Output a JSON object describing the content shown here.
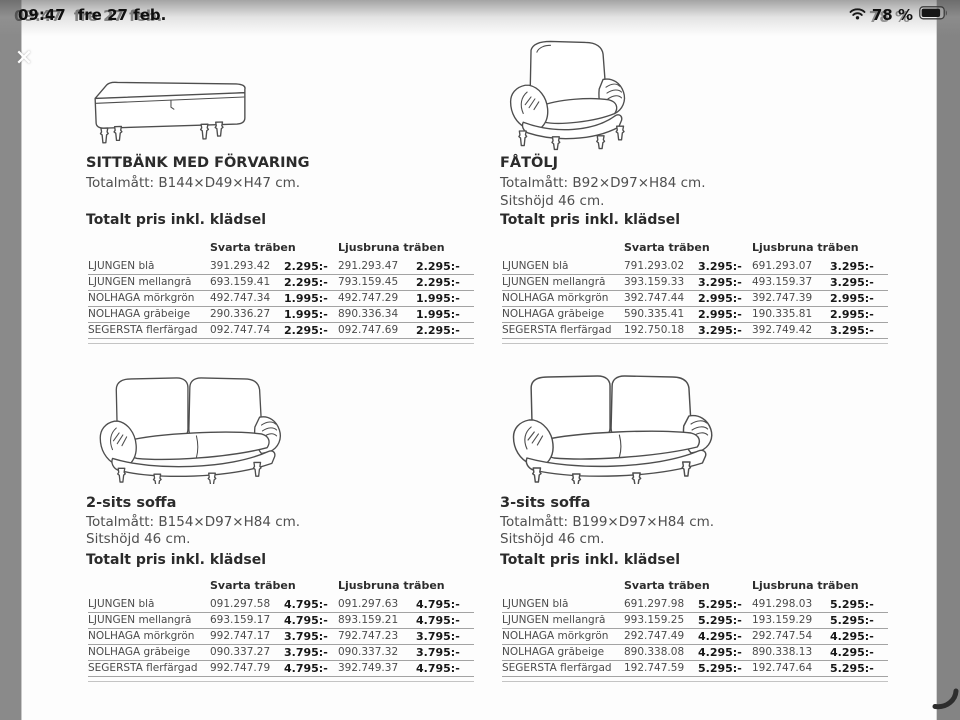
{
  "status_bar": {
    "time": "09:47",
    "date": "fre 27 feb.",
    "battery_percent": "78 %"
  },
  "icons": {
    "close_glyph": "✕"
  },
  "page": {
    "products": [
      {
        "name": "SITTBÄNK MED FÖRVARING",
        "dimensions": "Totalmått: B144×D49×H47 cm.",
        "seat_height": "",
        "price_title": "Totalt pris inkl. klädsel",
        "columns": [
          "Svarta träben",
          "Ljusbruna träben"
        ],
        "rows": [
          {
            "fabric": "LJUNGEN blå",
            "article_black": "391.293.42",
            "price_black": "2.295:-",
            "article_light": "291.293.47",
            "price_light": "2.295:-"
          },
          {
            "fabric": "LJUNGEN mellangrå",
            "article_black": "693.159.41",
            "price_black": "2.295:-",
            "article_light": "793.159.45",
            "price_light": "2.295:-"
          },
          {
            "fabric": "NOLHAGA mörkgrön",
            "article_black": "492.747.34",
            "price_black": "1.995:-",
            "article_light": "492.747.29",
            "price_light": "1.995:-"
          },
          {
            "fabric": "NOLHAGA gråbeige",
            "article_black": "290.336.27",
            "price_black": "1.995:-",
            "article_light": "890.336.34",
            "price_light": "1.995:-"
          },
          {
            "fabric": "SEGERSTA flerfärgad",
            "article_black": "092.747.74",
            "price_black": "2.295:-",
            "article_light": "092.747.69",
            "price_light": "2.295:-"
          }
        ]
      },
      {
        "name": "FÅTÖLJ",
        "dimensions": "Totalmått: B92×D97×H84 cm.",
        "seat_height": "Sitshöjd 46 cm.",
        "price_title": "Totalt pris inkl. klädsel",
        "columns": [
          "Svarta träben",
          "Ljusbruna träben"
        ],
        "rows": [
          {
            "fabric": "LJUNGEN blå",
            "article_black": "791.293.02",
            "price_black": "3.295:-",
            "article_light": "691.293.07",
            "price_light": "3.295:-"
          },
          {
            "fabric": "LJUNGEN mellangrå",
            "article_black": "393.159.33",
            "price_black": "3.295:-",
            "article_light": "493.159.37",
            "price_light": "3.295:-"
          },
          {
            "fabric": "NOLHAGA mörkgrön",
            "article_black": "392.747.44",
            "price_black": "2.995:-",
            "article_light": "392.747.39",
            "price_light": "2.995:-"
          },
          {
            "fabric": "NOLHAGA gråbeige",
            "article_black": "590.335.41",
            "price_black": "2.995:-",
            "article_light": "190.335.81",
            "price_light": "2.995:-"
          },
          {
            "fabric": "SEGERSTA flerfärgad",
            "article_black": "192.750.18",
            "price_black": "3.295:-",
            "article_light": "392.749.42",
            "price_light": "3.295:-"
          }
        ]
      },
      {
        "name": "2-sits soffa",
        "dimensions": "Totalmått: B154×D97×H84 cm.",
        "seat_height": "Sitshöjd 46 cm.",
        "price_title": "Totalt pris inkl. klädsel",
        "columns": [
          "Svarta träben",
          "Ljusbruna träben"
        ],
        "rows": [
          {
            "fabric": "LJUNGEN blå",
            "article_black": "091.297.58",
            "price_black": "4.795:-",
            "article_light": "091.297.63",
            "price_light": "4.795:-"
          },
          {
            "fabric": "LJUNGEN mellangrå",
            "article_black": "693.159.17",
            "price_black": "4.795:-",
            "article_light": "893.159.21",
            "price_light": "4.795:-"
          },
          {
            "fabric": "NOLHAGA mörkgrön",
            "article_black": "992.747.17",
            "price_black": "3.795:-",
            "article_light": "792.747.23",
            "price_light": "3.795:-"
          },
          {
            "fabric": "NOLHAGA gråbeige",
            "article_black": "090.337.27",
            "price_black": "3.795:-",
            "article_light": "090.337.32",
            "price_light": "3.795:-"
          },
          {
            "fabric": "SEGERSTA flerfärgad",
            "article_black": "992.747.79",
            "price_black": "4.795:-",
            "article_light": "392.749.37",
            "price_light": "4.795:-"
          }
        ]
      },
      {
        "name": "3-sits soffa",
        "dimensions": "Totalmått: B199×D97×H84 cm.",
        "seat_height": "Sitshöjd 46 cm.",
        "price_title": "Totalt pris inkl. klädsel",
        "columns": [
          "Svarta träben",
          "Ljusbruna träben"
        ],
        "rows": [
          {
            "fabric": "LJUNGEN blå",
            "article_black": "691.297.98",
            "price_black": "5.295:-",
            "article_light": "491.298.03",
            "price_light": "5.295:-"
          },
          {
            "fabric": "LJUNGEN mellangrå",
            "article_black": "993.159.25",
            "price_black": "5.295:-",
            "article_light": "193.159.29",
            "price_light": "5.295:-"
          },
          {
            "fabric": "NOLHAGA mörkgrön",
            "article_black": "292.747.49",
            "price_black": "4.295:-",
            "article_light": "292.747.54",
            "price_light": "4.295:-"
          },
          {
            "fabric": "NOLHAGA gråbeige",
            "article_black": "890.338.08",
            "price_black": "4.295:-",
            "article_light": "890.338.13",
            "price_light": "4.295:-"
          },
          {
            "fabric": "SEGERSTA flerfärgad",
            "article_black": "192.747.59",
            "price_black": "5.295:-",
            "article_light": "192.747.64",
            "price_light": "5.295:-"
          }
        ]
      }
    ]
  }
}
